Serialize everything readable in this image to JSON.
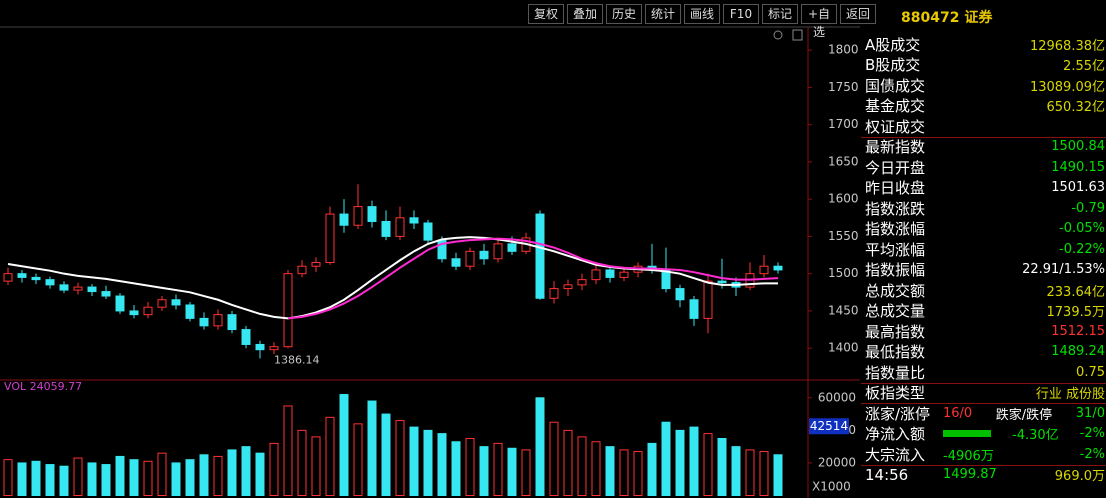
{
  "toolbar": {
    "buttons": [
      "复权",
      "叠加",
      "历史",
      "统计",
      "画线",
      "F10",
      "标记",
      "+自选",
      "返回"
    ]
  },
  "price_chart": {
    "ylim": [
      1360,
      1827
    ],
    "yticks": [
      1400,
      1450,
      1500,
      1550,
      1600,
      1650,
      1700,
      1750,
      1800
    ],
    "up_color": "#ff3232",
    "down_color": "#36e6f0",
    "low_label": 1386.14,
    "candles": [
      [
        1490,
        1500,
        1508,
        1485
      ],
      [
        1500,
        1495,
        1505,
        1488
      ],
      [
        1495,
        1492,
        1500,
        1486
      ],
      [
        1492,
        1485,
        1496,
        1480
      ],
      [
        1485,
        1478,
        1490,
        1474
      ],
      [
        1478,
        1482,
        1488,
        1472
      ],
      [
        1482,
        1476,
        1486,
        1470
      ],
      [
        1476,
        1470,
        1484,
        1466
      ],
      [
        1470,
        1450,
        1474,
        1446
      ],
      [
        1450,
        1445,
        1458,
        1440
      ],
      [
        1445,
        1455,
        1462,
        1440
      ],
      [
        1455,
        1465,
        1470,
        1450
      ],
      [
        1465,
        1458,
        1472,
        1452
      ],
      [
        1458,
        1440,
        1462,
        1436
      ],
      [
        1440,
        1430,
        1448,
        1425
      ],
      [
        1430,
        1445,
        1452,
        1425
      ],
      [
        1445,
        1425,
        1450,
        1420
      ],
      [
        1425,
        1405,
        1430,
        1400
      ],
      [
        1405,
        1398,
        1410,
        1386.14
      ],
      [
        1398,
        1402,
        1408,
        1392
      ],
      [
        1402,
        1500,
        1505,
        1400
      ],
      [
        1500,
        1510,
        1518,
        1495
      ],
      [
        1510,
        1515,
        1522,
        1502
      ],
      [
        1515,
        1580,
        1590,
        1512
      ],
      [
        1580,
        1565,
        1600,
        1555
      ],
      [
        1565,
        1590,
        1620,
        1560
      ],
      [
        1590,
        1570,
        1598,
        1562
      ],
      [
        1570,
        1550,
        1585,
        1545
      ],
      [
        1550,
        1575,
        1590,
        1545
      ],
      [
        1575,
        1568,
        1585,
        1560
      ],
      [
        1568,
        1545,
        1572,
        1540
      ],
      [
        1545,
        1520,
        1550,
        1515
      ],
      [
        1520,
        1510,
        1528,
        1505
      ],
      [
        1510,
        1530,
        1535,
        1505
      ],
      [
        1530,
        1520,
        1540,
        1512
      ],
      [
        1520,
        1540,
        1548,
        1515
      ],
      [
        1540,
        1530,
        1550,
        1525
      ],
      [
        1530,
        1548,
        1555,
        1526
      ],
      [
        1580,
        1467,
        1585,
        1465
      ],
      [
        1467,
        1480,
        1490,
        1460
      ],
      [
        1480,
        1485,
        1492,
        1470
      ],
      [
        1485,
        1492,
        1500,
        1478
      ],
      [
        1492,
        1505,
        1512,
        1486
      ],
      [
        1505,
        1495,
        1510,
        1488
      ],
      [
        1495,
        1502,
        1508,
        1490
      ],
      [
        1502,
        1510,
        1515,
        1495
      ],
      [
        1510,
        1505,
        1540,
        1500
      ],
      [
        1505,
        1480,
        1535,
        1475
      ],
      [
        1480,
        1465,
        1485,
        1455
      ],
      [
        1465,
        1440,
        1470,
        1430
      ],
      [
        1440,
        1490,
        1500,
        1420
      ],
      [
        1490,
        1488,
        1520,
        1480
      ],
      [
        1488,
        1482,
        1495,
        1470
      ],
      [
        1482,
        1500,
        1515,
        1478
      ],
      [
        1500,
        1510,
        1525,
        1495
      ],
      [
        1510,
        1505,
        1515,
        1500
      ]
    ],
    "ma": [
      {
        "color": "#ffffff",
        "values": [
          1513,
          1510,
          1507,
          1504,
          1500,
          1497,
          1495,
          1493,
          1490,
          1487,
          1484,
          1481,
          1478,
          1475,
          1470,
          1465,
          1458,
          1452,
          1446,
          1442,
          1440,
          1443,
          1448,
          1455,
          1465,
          1478,
          1492,
          1505,
          1518,
          1530,
          1540,
          1546,
          1548,
          1549,
          1548,
          1546,
          1543,
          1540,
          1535,
          1530,
          1524,
          1518,
          1512,
          1509,
          1507,
          1506,
          1505,
          1503,
          1500,
          1494,
          1488,
          1485,
          1485,
          1486,
          1487,
          1487
        ]
      },
      {
        "color": "#ff2ad0",
        "values": [
          null,
          null,
          null,
          null,
          null,
          null,
          null,
          null,
          null,
          null,
          null,
          null,
          null,
          null,
          null,
          null,
          null,
          null,
          null,
          null,
          1440,
          1442,
          1446,
          1452,
          1460,
          1470,
          1482,
          1495,
          1508,
          1520,
          1532,
          1540,
          1543,
          1545,
          1546,
          1547,
          1546,
          1544,
          1540,
          1535,
          1528,
          1520,
          1514,
          1510,
          1508,
          1507,
          1507,
          1506,
          1505,
          1502,
          1498,
          1494,
          1492,
          1492,
          1493,
          1494
        ]
      }
    ]
  },
  "volume_chart": {
    "legend": "VOL 24059.77",
    "ylim": [
      0,
      70000
    ],
    "yticks": [
      20000,
      40000,
      60000
    ],
    "unit": "X1000",
    "current": 42514,
    "values": [
      22000,
      20000,
      21000,
      19000,
      18000,
      23000,
      20000,
      19000,
      24000,
      22000,
      21000,
      26000,
      20000,
      22000,
      25000,
      24000,
      28000,
      30000,
      26000,
      32000,
      55000,
      40000,
      36000,
      48000,
      62000,
      44000,
      58000,
      50000,
      46000,
      42000,
      40000,
      38000,
      33000,
      35000,
      30000,
      32000,
      29000,
      28000,
      60000,
      45000,
      40000,
      36000,
      33000,
      30000,
      28000,
      27000,
      32000,
      45000,
      40000,
      42000,
      38000,
      35000,
      30000,
      28000,
      27000,
      25000
    ]
  },
  "panel": {
    "title": "880472 证券",
    "rows": [
      {
        "label": "A股成交",
        "value": "12968.38亿",
        "color": "#d8d800"
      },
      {
        "label": "B股成交",
        "value": "2.55亿",
        "color": "#d8d800"
      },
      {
        "label": "国债成交",
        "value": "13089.09亿",
        "color": "#d8d800"
      },
      {
        "label": "基金成交",
        "value": "650.32亿",
        "color": "#d8d800"
      },
      {
        "label": "权证成交"
      },
      {
        "label": "最新指数",
        "value": "1500.84",
        "color": "#00e000"
      },
      {
        "label": "今日开盘",
        "value": "1490.15",
        "color": "#00e000"
      },
      {
        "label": "昨日收盘",
        "value": "1501.63",
        "color": "#ffffff"
      },
      {
        "label": "指数涨跌",
        "value": "-0.79",
        "color": "#00e000"
      },
      {
        "label": "指数涨幅",
        "value": "-0.05%",
        "color": "#00e000"
      },
      {
        "label": "平均涨幅",
        "value": "-0.22%",
        "color": "#00e000"
      },
      {
        "label": "指数振幅",
        "value": "22.91/1.53%",
        "color": "#ffffff"
      },
      {
        "label": "总成交额",
        "value": "233.64亿",
        "color": "#d8d800"
      },
      {
        "label": "总成交量",
        "value": "1739.5万",
        "color": "#d8d800"
      },
      {
        "label": "最高指数",
        "value": "1512.15",
        "color": "#ff3232"
      },
      {
        "label": "最低指数",
        "value": "1489.24",
        "color": "#00e000"
      },
      {
        "label": "指数量比",
        "value": "0.75",
        "color": "#d8d800"
      },
      {
        "label": "板指类型",
        "value": "行业 成份股",
        "color": "#d8d800"
      },
      {
        "label": "涨家/涨停",
        "parts": [
          {
            "text": "16/0",
            "color": "#ff3232"
          },
          {
            "text": "跌家/跌停",
            "color": "#ffffff"
          },
          {
            "text": "31/0",
            "color": "#00e000"
          }
        ]
      },
      {
        "label": "净流入额",
        "bar_color": "#00c000",
        "parts": [
          {
            "text": "-4.30亿",
            "color": "#00e000"
          },
          {
            "text": "-2%",
            "color": "#00e000"
          }
        ]
      },
      {
        "label": "大宗流入",
        "parts": [
          {
            "text": "-4906万",
            "color": "#00e000"
          },
          {
            "text": "-2%",
            "color": "#00e000"
          }
        ]
      },
      {
        "label": "14:56",
        "parts": [
          {
            "text": "1499.87",
            "color": "#00e000"
          },
          {
            "text": "969.0万",
            "color": "#d8d800"
          }
        ]
      }
    ]
  }
}
